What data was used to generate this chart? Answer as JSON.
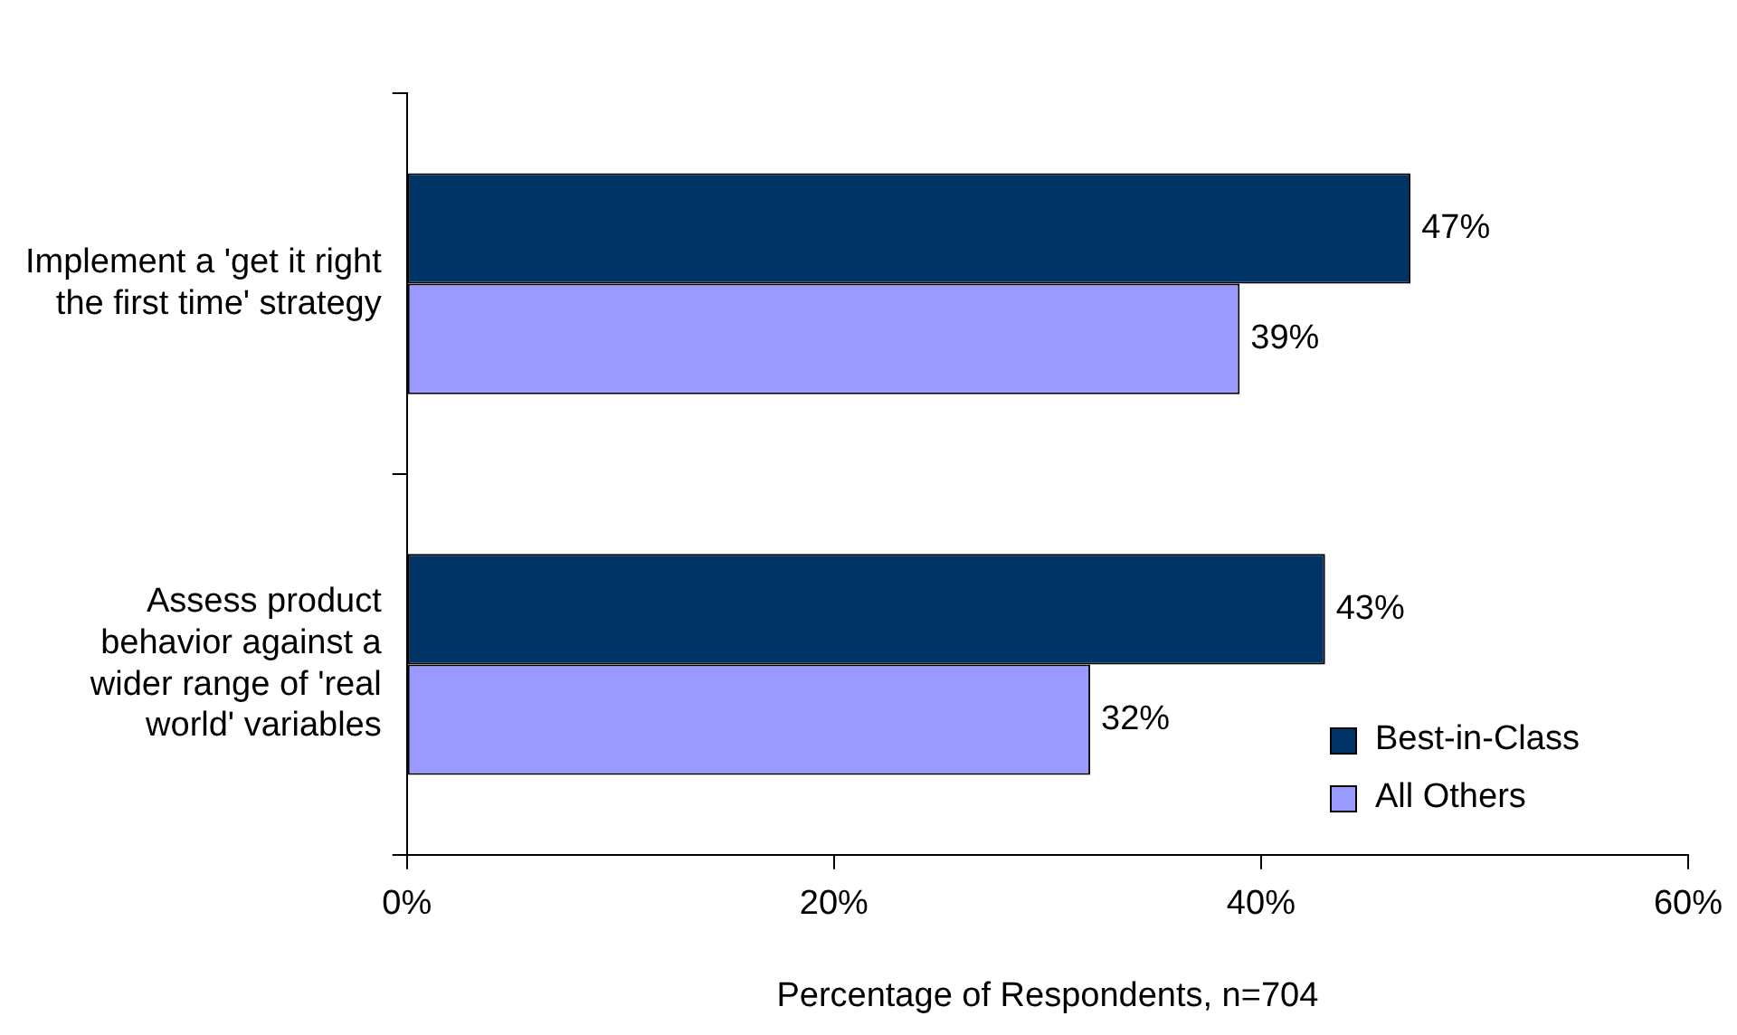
{
  "chart_data": {
    "type": "bar",
    "orientation": "horizontal",
    "xlabel": "Percentage of Respondents, n=704",
    "categories": [
      "Implement a 'get it right\nthe first time' strategy",
      "Assess product\nbehavior against a\nwider range of 'real\nworld' variables"
    ],
    "series": [
      {
        "name": "Best-in-Class",
        "color": "#003366",
        "values": [
          47,
          43
        ],
        "value_labels": [
          "47%",
          "43%"
        ]
      },
      {
        "name": "All Others",
        "color": "#9999ff",
        "values": [
          39,
          32
        ],
        "value_labels": [
          "39%",
          "32%"
        ]
      }
    ],
    "xlim": [
      0,
      60
    ],
    "xticks": [
      {
        "value": 0,
        "label": "0%"
      },
      {
        "value": 20,
        "label": "20%"
      },
      {
        "value": 40,
        "label": "40%"
      },
      {
        "value": 60,
        "label": "60%"
      }
    ],
    "grid": false,
    "legend": "bottom right"
  }
}
